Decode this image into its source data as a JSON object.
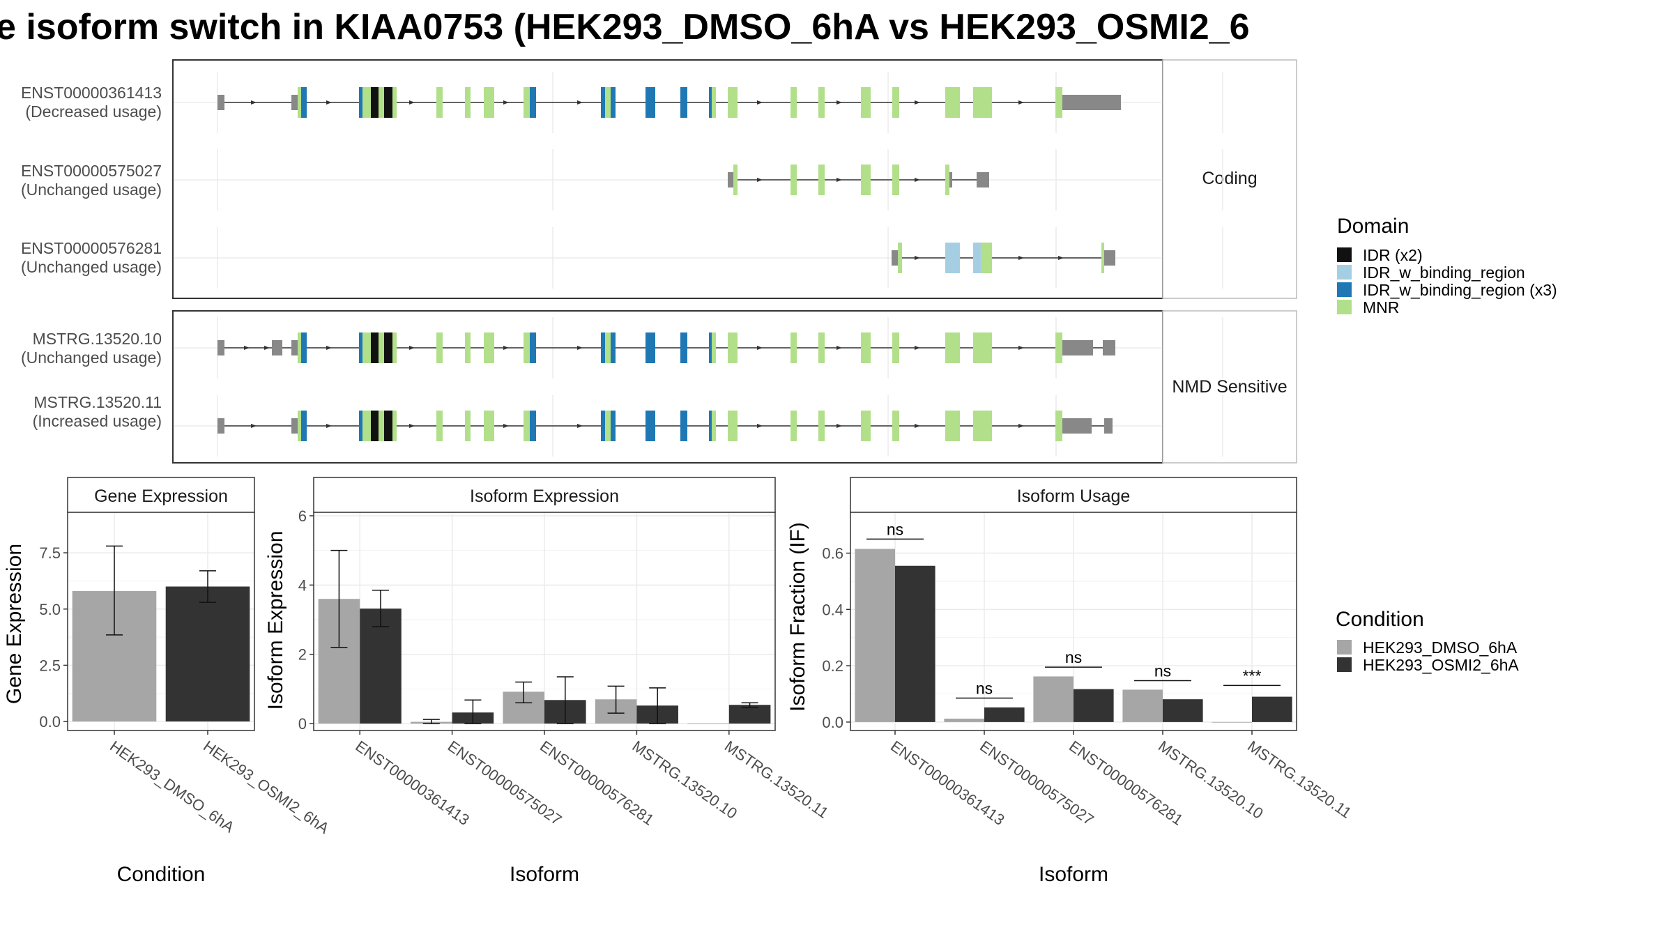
{
  "title": "e isoform switch in KIAA0753 (HEK293_DMSO_6hA vs HEK293_OSMI2_6",
  "colors": {
    "IDR (x2)": "#111111",
    "IDR_w_binding_region": "#a6cee3",
    "IDR_w_binding_region (x3)": "#1f78b4",
    "MNR": "#b2df8a",
    "exon": "#888888",
    "HEK293_DMSO_6hA": "#a6a6a6",
    "HEK293_OSMI2_6hA": "#333333"
  },
  "structure": {
    "panels": [
      {
        "label": "Coding",
        "transcripts": [
          {
            "id": "ENST00000361413",
            "usage": "(Decreased usage)",
            "template": "full"
          },
          {
            "id": "ENST00000575027",
            "usage": "(Unchanged usage)",
            "template": "short"
          },
          {
            "id": "ENST00000576281",
            "usage": "(Unchanged usage)",
            "template": "tiny"
          }
        ]
      },
      {
        "label": "NMD Sensitive",
        "transcripts": [
          {
            "id": "MSTRG.13520.10",
            "usage": "(Unchanged usage)",
            "template": "full_alt1"
          },
          {
            "id": "MSTRG.13520.11",
            "usage": "(Increased usage)",
            "template": "full_alt2"
          }
        ]
      }
    ],
    "domain_legend": {
      "title": "Domain",
      "items": [
        "IDR (x2)",
        "IDR_w_binding_region",
        "IDR_w_binding_region (x3)",
        "MNR"
      ]
    }
  },
  "chart_data": [
    {
      "type": "bar",
      "title": "Gene Expression",
      "xlabel": "Condition",
      "ylabel": "Gene Expression",
      "categories": [
        "HEK293_DMSO_6hA",
        "HEK293_OSMI2_6hA"
      ],
      "values": [
        5.8,
        6.0
      ],
      "error": [
        [
          3.85,
          7.8
        ],
        [
          5.3,
          6.7
        ]
      ],
      "ylim": [
        -0.4,
        9.3
      ],
      "yticks": [
        "0.0",
        "2.5",
        "5.0",
        "7.5"
      ],
      "ytick_values": [
        0,
        2.5,
        5,
        7.5
      ]
    },
    {
      "type": "bar",
      "title": "Isoform Expression",
      "xlabel": "Isoform",
      "ylabel": "Isoform Expression",
      "categories": [
        "ENST00000361413",
        "ENST00000575027",
        "ENST00000576281",
        "MSTRG.13520.10",
        "MSTRG.13520.11"
      ],
      "series": [
        {
          "name": "HEK293_DMSO_6hA",
          "values": [
            3.6,
            0.05,
            0.92,
            0.7,
            0.0
          ],
          "error": [
            [
              2.2,
              5.0
            ],
            [
              0.0,
              0.12
            ],
            [
              0.6,
              1.2
            ],
            [
              0.3,
              1.08
            ],
            null
          ]
        },
        {
          "name": "HEK293_OSMI2_6hA",
          "values": [
            3.32,
            0.32,
            0.68,
            0.52,
            0.54
          ],
          "error": [
            [
              2.8,
              3.85
            ],
            [
              0.0,
              0.68
            ],
            [
              0.0,
              1.35
            ],
            [
              0.0,
              1.03
            ],
            [
              0.47,
              0.6
            ]
          ]
        }
      ],
      "ylim": [
        -0.2,
        6.1
      ],
      "yticks": [
        "0",
        "2",
        "4",
        "6"
      ],
      "ytick_values": [
        0,
        2,
        4,
        6
      ]
    },
    {
      "type": "bar",
      "title": "Isoform Usage",
      "xlabel": "Isoform",
      "ylabel": "Isoform Fraction (IF)",
      "categories": [
        "ENST00000361413",
        "ENST00000575027",
        "ENST00000576281",
        "MSTRG.13520.10",
        "MSTRG.13520.11"
      ],
      "series": [
        {
          "name": "HEK293_DMSO_6hA",
          "values": [
            0.615,
            0.012,
            0.162,
            0.115,
            0.0
          ]
        },
        {
          "name": "HEK293_OSMI2_6hA",
          "values": [
            0.555,
            0.052,
            0.117,
            0.081,
            0.09
          ]
        }
      ],
      "significance": [
        "ns",
        "ns",
        "ns",
        "ns",
        "***"
      ],
      "significance_y": [
        0.65,
        0.085,
        0.195,
        0.147,
        0.13
      ],
      "ylim": [
        -0.03,
        0.745
      ],
      "yticks": [
        "0.0",
        "0.2",
        "0.4",
        "0.6"
      ],
      "ytick_values": [
        0,
        0.2,
        0.4,
        0.6
      ]
    }
  ],
  "condition_legend": {
    "title": "Condition",
    "items": [
      "HEK293_DMSO_6hA",
      "HEK293_OSMI2_6hA"
    ]
  }
}
